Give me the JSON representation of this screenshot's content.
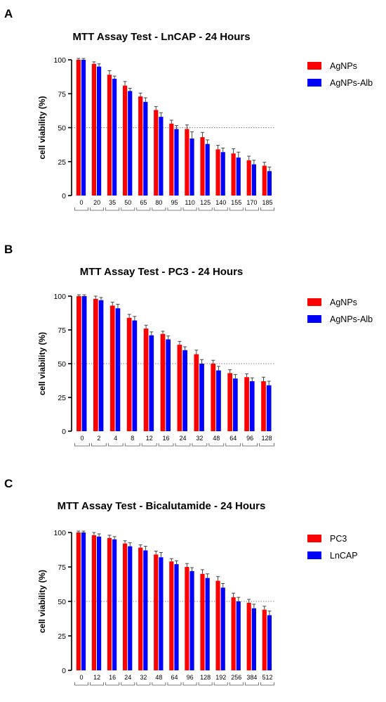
{
  "panels": [
    {
      "letter": "A",
      "title": "MTT Assay Test - LnCAP - 24 Hours"
    },
    {
      "letter": "B",
      "title": "MTT Assay Test - PC3 - 24 Hours"
    },
    {
      "letter": "C",
      "title": "MTT Assay Test - Bicalutamide - 24 Hours"
    }
  ],
  "colors": {
    "red": "#ff0000",
    "blue": "#0000ff"
  },
  "chart_data": [
    {
      "type": "bar",
      "title": "MTT Assay Test - LnCAP - 24 Hours",
      "xlabel": "",
      "ylabel": "cell viability (%)",
      "ylim": [
        0,
        100
      ],
      "yticks": [
        0,
        25,
        50,
        75,
        100
      ],
      "reference_line": 50,
      "legend_position": "top-right",
      "categories": [
        "0",
        "20",
        "35",
        "50",
        "65",
        "80",
        "95",
        "110",
        "125",
        "140",
        "155",
        "170",
        "185"
      ],
      "series": [
        {
          "name": "AgNPs",
          "color": "#ff0000",
          "values": [
            100,
            97,
            89,
            81,
            73,
            63,
            53,
            49,
            43,
            34,
            31,
            26,
            22
          ],
          "errors": [
            1,
            1.5,
            3,
            3,
            2.5,
            2.5,
            2.5,
            3,
            3.5,
            3,
            3.5,
            3,
            2.5
          ]
        },
        {
          "name": "AgNPs-Alb",
          "color": "#0000ff",
          "values": [
            100,
            95,
            86,
            77,
            69,
            58,
            49,
            42,
            38,
            32,
            28,
            23,
            18
          ],
          "errors": [
            1,
            2,
            2,
            2,
            3,
            3,
            2.5,
            5,
            3,
            3,
            4,
            3,
            3
          ]
        }
      ]
    },
    {
      "type": "bar",
      "title": "MTT Assay Test - PC3 - 24 Hours",
      "xlabel": "",
      "ylabel": "cell viability (%)",
      "ylim": [
        0,
        100
      ],
      "yticks": [
        0,
        25,
        50,
        75,
        100
      ],
      "reference_line": 50,
      "legend_position": "top-right",
      "categories": [
        "0",
        "2",
        "4",
        "8",
        "12",
        "16",
        "24",
        "32",
        "48",
        "64",
        "96",
        "128"
      ],
      "series": [
        {
          "name": "AgNPs",
          "color": "#ff0000",
          "values": [
            100,
            98,
            93,
            84,
            76,
            72,
            64,
            57,
            50,
            43,
            40,
            37
          ],
          "errors": [
            1,
            2,
            2.5,
            2.5,
            2.5,
            2,
            2.5,
            3,
            2.5,
            2.5,
            2.5,
            3
          ]
        },
        {
          "name": "AgNPs-Alb",
          "color": "#0000ff",
          "values": [
            100,
            97,
            91,
            82,
            71,
            68,
            60,
            50,
            45,
            39,
            37,
            34
          ],
          "errors": [
            1,
            2,
            3,
            3,
            2.5,
            2.5,
            2.5,
            3,
            3,
            3,
            2.5,
            3
          ]
        }
      ]
    },
    {
      "type": "bar",
      "title": "MTT Assay Test - Bicalutamide - 24 Hours",
      "xlabel": "",
      "ylabel": "cell viability (%)",
      "ylim": [
        0,
        100
      ],
      "yticks": [
        0,
        25,
        50,
        75,
        100
      ],
      "reference_line": 50,
      "legend_position": "top-right",
      "categories": [
        "0",
        "12",
        "16",
        "24",
        "32",
        "48",
        "64",
        "96",
        "128",
        "192",
        "256",
        "384",
        "512"
      ],
      "series": [
        {
          "name": "PC3",
          "color": "#ff0000",
          "values": [
            100,
            98,
            96,
            92,
            89,
            84,
            79,
            75,
            70,
            65,
            53,
            49,
            44
          ],
          "errors": [
            1,
            2,
            2,
            2,
            2,
            2.5,
            2,
            2.5,
            3,
            3,
            3,
            2.5,
            2.5
          ]
        },
        {
          "name": "LnCAP",
          "color": "#0000ff",
          "values": [
            100,
            97,
            95,
            90,
            87,
            82,
            77,
            72,
            67,
            60,
            50,
            45,
            40
          ],
          "errors": [
            1,
            2,
            2,
            2.5,
            3,
            3.5,
            2.5,
            2.5,
            3,
            3,
            3,
            3,
            3
          ]
        }
      ]
    }
  ]
}
